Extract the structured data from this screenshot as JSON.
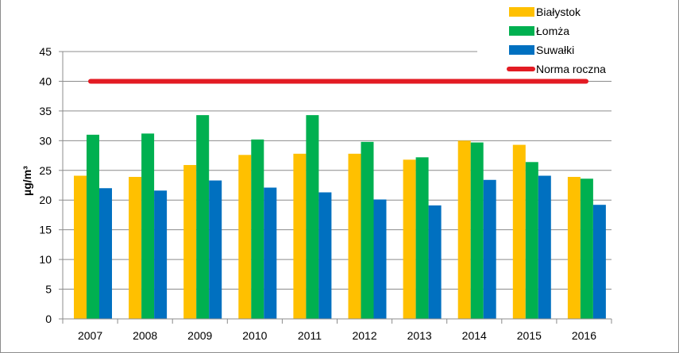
{
  "chart_data": {
    "type": "bar",
    "title": "",
    "xlabel": "",
    "ylabel": "µg/m³",
    "ylim": [
      0,
      45
    ],
    "yticks": [
      "0",
      "5",
      "10",
      "15",
      "20",
      "25",
      "30",
      "35",
      "40",
      "45"
    ],
    "grid": true,
    "legend_position": "top-right",
    "categories": [
      "2007",
      "2008",
      "2009",
      "2010",
      "2011",
      "2012",
      "2013",
      "2014",
      "2015",
      "2016"
    ],
    "series": [
      {
        "name": "Białystok",
        "color": "#FFC000",
        "values": [
          24.1,
          23.9,
          25.9,
          27.6,
          27.8,
          27.8,
          26.8,
          30.0,
          29.3,
          23.9
        ]
      },
      {
        "name": "Łomża",
        "color": "#00B050",
        "values": [
          31.0,
          31.2,
          34.3,
          30.2,
          34.3,
          29.8,
          27.2,
          29.7,
          26.4,
          23.6
        ]
      },
      {
        "name": "Suwałki",
        "color": "#0070C0",
        "values": [
          22.0,
          21.6,
          23.3,
          22.1,
          21.3,
          20.1,
          19.1,
          23.4,
          24.1,
          19.2
        ]
      }
    ],
    "reference_line": {
      "name": "Norma roczna",
      "value": 40,
      "color": "#E31B23"
    }
  }
}
